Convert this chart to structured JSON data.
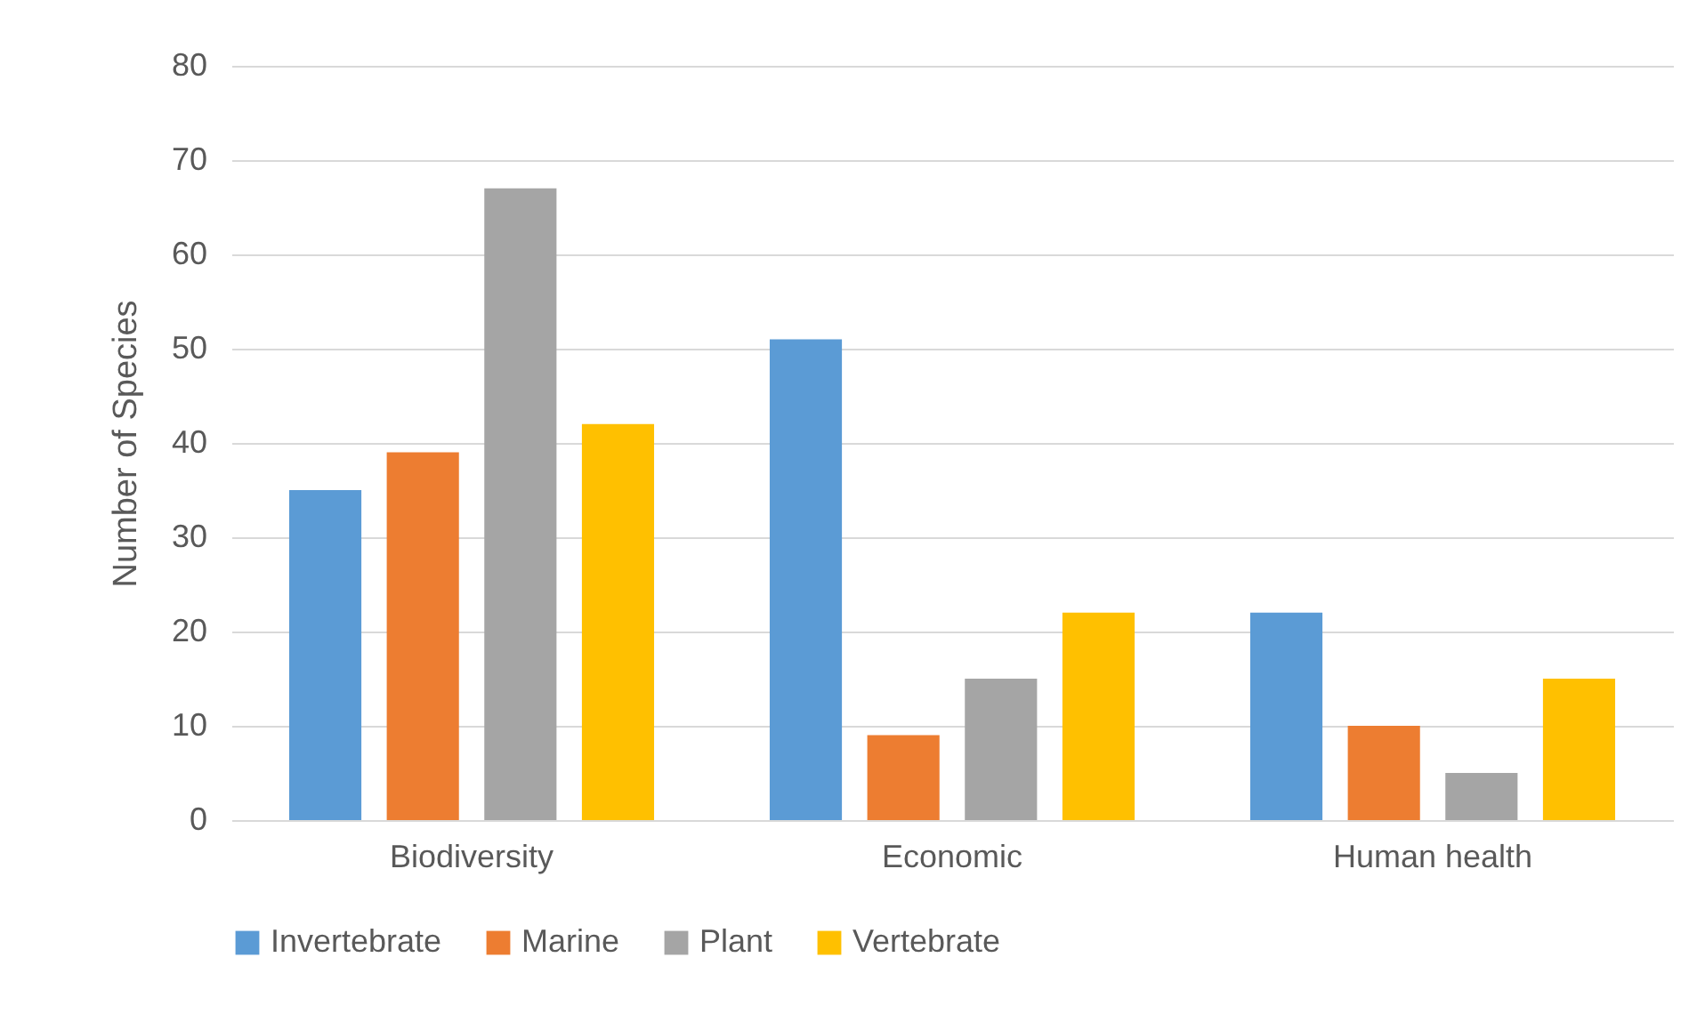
{
  "chart_data": {
    "type": "bar",
    "ylabel": "Number of Species",
    "categories": [
      "Biodiversity",
      "Economic",
      "Human health"
    ],
    "series": [
      {
        "name": "Invertebrate",
        "color": "#5b9bd5",
        "values": [
          35,
          51,
          22
        ]
      },
      {
        "name": "Marine",
        "color": "#ed7d31",
        "values": [
          39,
          9,
          10
        ]
      },
      {
        "name": "Plant",
        "color": "#a5a5a5",
        "values": [
          67,
          15,
          5
        ]
      },
      {
        "name": "Vertebrate",
        "color": "#ffc000",
        "values": [
          42,
          22,
          15
        ]
      }
    ],
    "ylim": [
      0,
      80
    ],
    "yticks": [
      0,
      10,
      20,
      30,
      40,
      50,
      60,
      70,
      80
    ],
    "grid": "y",
    "legend": "bottom"
  }
}
